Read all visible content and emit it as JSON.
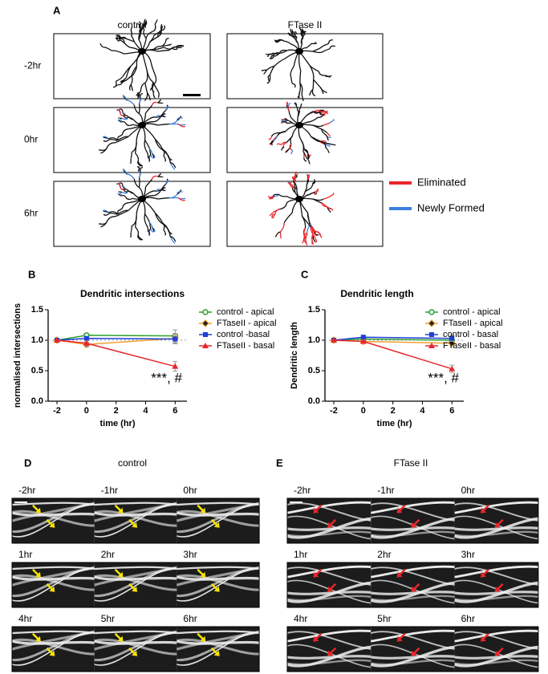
{
  "panel_a": {
    "label": "A",
    "columns": [
      "control",
      "FTase II"
    ],
    "rows": [
      "-2hr",
      "0hr",
      "6hr"
    ],
    "legend": [
      {
        "name": "Eliminated",
        "color": "#e8262a"
      },
      {
        "name": "Newly Formed",
        "color": "#3c7fe0"
      }
    ]
  },
  "chart_data": [
    {
      "type": "line",
      "panel_label": "B",
      "title": "Dendritic intersections",
      "x_label": "time (hr)",
      "y_label": "normalised intersections",
      "x": [
        -2,
        0,
        6
      ],
      "xlim": [
        -2.6,
        6.8
      ],
      "xticks": [
        -2,
        0,
        2,
        4,
        6
      ],
      "ylim": [
        0,
        1.5
      ],
      "yticks": [
        {
          "value": 0,
          "label": "0.0"
        },
        0.5,
        {
          "value": 1,
          "label": "1.0"
        },
        1.5
      ],
      "reference_line": 1,
      "annotation": "***, #",
      "series": [
        {
          "name": "control - apical",
          "color": "#2ca02c",
          "marker": "circle",
          "values": [
            1.0,
            1.08,
            1.07
          ],
          "errors": [
            0,
            0.03,
            0.1
          ]
        },
        {
          "name": "FTaseII - apical",
          "color": "#f0a030",
          "marker": "diamond",
          "values": [
            1.0,
            0.93,
            1.03
          ],
          "errors": [
            0,
            0.04,
            0.08
          ]
        },
        {
          "name": "control -basal",
          "color": "#1f3fd8",
          "marker": "square",
          "values": [
            1.0,
            1.03,
            1.02
          ],
          "errors": [
            0,
            0.02,
            0.08
          ]
        },
        {
          "name": "FTaseII - basal",
          "color": "#e8262a",
          "marker": "triangle",
          "values": [
            1.0,
            0.95,
            0.57
          ],
          "errors": [
            0,
            0.04,
            0.08
          ]
        }
      ]
    },
    {
      "type": "line",
      "panel_label": "C",
      "title": "Dendritic length",
      "x_label": "time (hr)",
      "y_label": "Dendritic length",
      "x": [
        -2,
        0,
        6
      ],
      "xlim": [
        -2.6,
        6.8
      ],
      "xticks": [
        -2,
        0,
        2,
        4,
        6
      ],
      "ylim": [
        0,
        1.5
      ],
      "yticks": [
        {
          "value": 0,
          "label": "0.0"
        },
        0.5,
        {
          "value": 1,
          "label": "1.0"
        },
        1.5
      ],
      "reference_line": 1,
      "annotation": "***, #",
      "series": [
        {
          "name": "control - apical",
          "color": "#2ca02c",
          "marker": "circle",
          "values": [
            1.0,
            1.02,
            1.0
          ],
          "errors": [
            0,
            0.02,
            0.04
          ]
        },
        {
          "name": "FTaseII - apical",
          "color": "#f0a030",
          "marker": "diamond",
          "values": [
            1.0,
            0.98,
            0.95
          ],
          "errors": [
            0,
            0.02,
            0.03
          ]
        },
        {
          "name": "control - basal",
          "color": "#1f3fd8",
          "marker": "square",
          "values": [
            1.0,
            1.05,
            1.03
          ],
          "errors": [
            0,
            0.03,
            0.05
          ]
        },
        {
          "name": "FTaseII - basal",
          "color": "#e8262a",
          "marker": "triangle",
          "values": [
            1.0,
            0.98,
            0.53
          ],
          "errors": [
            0,
            0.02,
            0.06
          ]
        }
      ]
    }
  ],
  "panel_d": {
    "label": "D",
    "title": "control",
    "frames": [
      "-2hr",
      "-1hr",
      "0hr",
      "1hr",
      "2hr",
      "3hr",
      "4hr",
      "5hr",
      "6hr"
    ],
    "arrow_color": "#f5e400"
  },
  "panel_e": {
    "label": "E",
    "title": "FTase II",
    "frames": [
      "-2hr",
      "-1hr",
      "0hr",
      "1hr",
      "2hr",
      "3hr",
      "4hr",
      "5hr",
      "6hr"
    ],
    "arrow_color": "#e8262a"
  }
}
